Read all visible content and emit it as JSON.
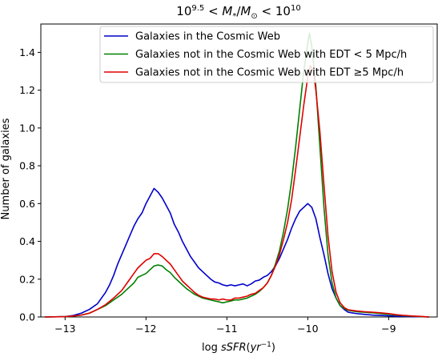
{
  "chart_data": {
    "type": "line",
    "title": "10^9.5 < M*/M⊙ < 10^10",
    "xlabel": "log sSFR(yr⁻¹)",
    "ylabel": "Number of galaxies",
    "xlim": [
      -13.3,
      -8.4
    ],
    "ylim": [
      0,
      1.55
    ],
    "xticks": [
      -13,
      -12,
      -11,
      -10,
      -9
    ],
    "yticks": [
      0.0,
      0.2,
      0.4,
      0.6,
      0.8,
      1.0,
      1.2,
      1.4
    ],
    "xtick_labels": [
      "−13",
      "−12",
      "−11",
      "−10",
      "−9"
    ],
    "ytick_labels": [
      "0.0",
      "0.2",
      "0.4",
      "0.6",
      "0.8",
      "1.0",
      "1.2",
      "1.4"
    ],
    "grid": false,
    "legend_position": "top-right",
    "series": [
      {
        "name": "Galaxies in the Cosmic Web",
        "color": "#0000cc",
        "points": [
          [
            -13.25,
            0.0
          ],
          [
            -13.0,
            0.002
          ],
          [
            -12.9,
            0.008
          ],
          [
            -12.8,
            0.02
          ],
          [
            -12.7,
            0.04
          ],
          [
            -12.6,
            0.07
          ],
          [
            -12.5,
            0.13
          ],
          [
            -12.45,
            0.17
          ],
          [
            -12.4,
            0.22
          ],
          [
            -12.35,
            0.28
          ],
          [
            -12.3,
            0.33
          ],
          [
            -12.25,
            0.38
          ],
          [
            -12.2,
            0.43
          ],
          [
            -12.15,
            0.48
          ],
          [
            -12.1,
            0.52
          ],
          [
            -12.05,
            0.55
          ],
          [
            -12.0,
            0.6
          ],
          [
            -11.95,
            0.64
          ],
          [
            -11.9,
            0.68
          ],
          [
            -11.85,
            0.66
          ],
          [
            -11.8,
            0.63
          ],
          [
            -11.75,
            0.59
          ],
          [
            -11.7,
            0.55
          ],
          [
            -11.65,
            0.49
          ],
          [
            -11.6,
            0.45
          ],
          [
            -11.55,
            0.4
          ],
          [
            -11.5,
            0.36
          ],
          [
            -11.45,
            0.32
          ],
          [
            -11.4,
            0.29
          ],
          [
            -11.35,
            0.26
          ],
          [
            -11.3,
            0.24
          ],
          [
            -11.25,
            0.22
          ],
          [
            -11.2,
            0.2
          ],
          [
            -11.15,
            0.185
          ],
          [
            -11.1,
            0.18
          ],
          [
            -11.05,
            0.17
          ],
          [
            -11.0,
            0.165
          ],
          [
            -10.95,
            0.17
          ],
          [
            -10.9,
            0.165
          ],
          [
            -10.85,
            0.17
          ],
          [
            -10.8,
            0.175
          ],
          [
            -10.75,
            0.165
          ],
          [
            -10.7,
            0.175
          ],
          [
            -10.65,
            0.19
          ],
          [
            -10.6,
            0.195
          ],
          [
            -10.55,
            0.21
          ],
          [
            -10.5,
            0.22
          ],
          [
            -10.45,
            0.24
          ],
          [
            -10.4,
            0.27
          ],
          [
            -10.35,
            0.31
          ],
          [
            -10.3,
            0.36
          ],
          [
            -10.25,
            0.41
          ],
          [
            -10.2,
            0.47
          ],
          [
            -10.15,
            0.52
          ],
          [
            -10.1,
            0.56
          ],
          [
            -10.05,
            0.58
          ],
          [
            -10.0,
            0.6
          ],
          [
            -9.95,
            0.58
          ],
          [
            -9.9,
            0.52
          ],
          [
            -9.85,
            0.42
          ],
          [
            -9.8,
            0.33
          ],
          [
            -9.75,
            0.23
          ],
          [
            -9.7,
            0.15
          ],
          [
            -9.65,
            0.1
          ],
          [
            -9.6,
            0.06
          ],
          [
            -9.55,
            0.04
          ],
          [
            -9.5,
            0.025
          ],
          [
            -9.4,
            0.018
          ],
          [
            -9.3,
            0.014
          ],
          [
            -9.2,
            0.01
          ],
          [
            -9.1,
            0.008
          ],
          [
            -9.0,
            0.006
          ],
          [
            -8.9,
            0.004
          ],
          [
            -8.8,
            0.003
          ],
          [
            -8.7,
            0.002
          ],
          [
            -8.6,
            0.001
          ],
          [
            -8.5,
            0.0
          ]
        ]
      },
      {
        "name": "Galaxies not in the Cosmic Web with EDT < 5 Mpc/h",
        "color": "#008000",
        "points": [
          [
            -13.25,
            0.0
          ],
          [
            -13.0,
            0.002
          ],
          [
            -12.9,
            0.005
          ],
          [
            -12.8,
            0.01
          ],
          [
            -12.7,
            0.02
          ],
          [
            -12.6,
            0.04
          ],
          [
            -12.5,
            0.06
          ],
          [
            -12.4,
            0.09
          ],
          [
            -12.3,
            0.12
          ],
          [
            -12.25,
            0.14
          ],
          [
            -12.2,
            0.16
          ],
          [
            -12.15,
            0.18
          ],
          [
            -12.1,
            0.21
          ],
          [
            -12.05,
            0.22
          ],
          [
            -12.0,
            0.23
          ],
          [
            -11.95,
            0.25
          ],
          [
            -11.9,
            0.27
          ],
          [
            -11.85,
            0.275
          ],
          [
            -11.8,
            0.27
          ],
          [
            -11.75,
            0.25
          ],
          [
            -11.7,
            0.235
          ],
          [
            -11.65,
            0.21
          ],
          [
            -11.6,
            0.19
          ],
          [
            -11.55,
            0.17
          ],
          [
            -11.5,
            0.15
          ],
          [
            -11.45,
            0.135
          ],
          [
            -11.4,
            0.12
          ],
          [
            -11.35,
            0.11
          ],
          [
            -11.3,
            0.1
          ],
          [
            -11.25,
            0.095
          ],
          [
            -11.2,
            0.09
          ],
          [
            -11.15,
            0.085
          ],
          [
            -11.1,
            0.08
          ],
          [
            -11.05,
            0.075
          ],
          [
            -11.0,
            0.08
          ],
          [
            -10.95,
            0.085
          ],
          [
            -10.9,
            0.09
          ],
          [
            -10.85,
            0.09
          ],
          [
            -10.8,
            0.095
          ],
          [
            -10.75,
            0.1
          ],
          [
            -10.7,
            0.11
          ],
          [
            -10.65,
            0.12
          ],
          [
            -10.6,
            0.135
          ],
          [
            -10.55,
            0.155
          ],
          [
            -10.5,
            0.18
          ],
          [
            -10.45,
            0.22
          ],
          [
            -10.4,
            0.28
          ],
          [
            -10.35,
            0.35
          ],
          [
            -10.3,
            0.45
          ],
          [
            -10.25,
            0.57
          ],
          [
            -10.2,
            0.72
          ],
          [
            -10.15,
            0.9
          ],
          [
            -10.1,
            1.1
          ],
          [
            -10.05,
            1.3
          ],
          [
            -10.0,
            1.45
          ],
          [
            -9.98,
            1.5
          ],
          [
            -9.95,
            1.43
          ],
          [
            -9.9,
            1.22
          ],
          [
            -9.85,
            0.9
          ],
          [
            -9.8,
            0.58
          ],
          [
            -9.75,
            0.33
          ],
          [
            -9.7,
            0.18
          ],
          [
            -9.65,
            0.1
          ],
          [
            -9.6,
            0.06
          ],
          [
            -9.55,
            0.045
          ],
          [
            -9.5,
            0.035
          ],
          [
            -9.4,
            0.028
          ],
          [
            -9.3,
            0.025
          ],
          [
            -9.2,
            0.022
          ],
          [
            -9.1,
            0.018
          ],
          [
            -9.0,
            0.014
          ],
          [
            -8.9,
            0.01
          ],
          [
            -8.8,
            0.006
          ],
          [
            -8.7,
            0.004
          ],
          [
            -8.6,
            0.002
          ],
          [
            -8.5,
            0.0
          ]
        ]
      },
      {
        "name": "Galaxies not in the Cosmic Web with EDT ≥5 Mpc/h",
        "color": "#e00000",
        "points": [
          [
            -13.25,
            0.0
          ],
          [
            -13.0,
            0.002
          ],
          [
            -12.9,
            0.005
          ],
          [
            -12.8,
            0.01
          ],
          [
            -12.7,
            0.02
          ],
          [
            -12.6,
            0.04
          ],
          [
            -12.5,
            0.065
          ],
          [
            -12.4,
            0.1
          ],
          [
            -12.3,
            0.14
          ],
          [
            -12.25,
            0.17
          ],
          [
            -12.2,
            0.2
          ],
          [
            -12.15,
            0.23
          ],
          [
            -12.1,
            0.26
          ],
          [
            -12.05,
            0.28
          ],
          [
            -12.0,
            0.3
          ],
          [
            -11.95,
            0.31
          ],
          [
            -11.9,
            0.335
          ],
          [
            -11.85,
            0.335
          ],
          [
            -11.8,
            0.32
          ],
          [
            -11.75,
            0.3
          ],
          [
            -11.7,
            0.28
          ],
          [
            -11.65,
            0.25
          ],
          [
            -11.6,
            0.22
          ],
          [
            -11.55,
            0.19
          ],
          [
            -11.5,
            0.17
          ],
          [
            -11.45,
            0.15
          ],
          [
            -11.4,
            0.13
          ],
          [
            -11.35,
            0.115
          ],
          [
            -11.3,
            0.105
          ],
          [
            -11.25,
            0.1
          ],
          [
            -11.2,
            0.095
          ],
          [
            -11.15,
            0.095
          ],
          [
            -11.1,
            0.09
          ],
          [
            -11.05,
            0.095
          ],
          [
            -11.0,
            0.09
          ],
          [
            -10.95,
            0.09
          ],
          [
            -10.9,
            0.1
          ],
          [
            -10.85,
            0.1
          ],
          [
            -10.8,
            0.105
          ],
          [
            -10.75,
            0.11
          ],
          [
            -10.7,
            0.12
          ],
          [
            -10.65,
            0.125
          ],
          [
            -10.6,
            0.14
          ],
          [
            -10.55,
            0.155
          ],
          [
            -10.5,
            0.18
          ],
          [
            -10.45,
            0.22
          ],
          [
            -10.4,
            0.27
          ],
          [
            -10.35,
            0.33
          ],
          [
            -10.3,
            0.41
          ],
          [
            -10.25,
            0.5
          ],
          [
            -10.2,
            0.62
          ],
          [
            -10.15,
            0.78
          ],
          [
            -10.1,
            0.95
          ],
          [
            -10.05,
            1.12
          ],
          [
            -10.0,
            1.27
          ],
          [
            -9.97,
            1.33
          ],
          [
            -9.93,
            1.3
          ],
          [
            -9.9,
            1.2
          ],
          [
            -9.85,
            0.98
          ],
          [
            -9.8,
            0.7
          ],
          [
            -9.75,
            0.43
          ],
          [
            -9.7,
            0.24
          ],
          [
            -9.65,
            0.13
          ],
          [
            -9.6,
            0.075
          ],
          [
            -9.55,
            0.05
          ],
          [
            -9.5,
            0.038
          ],
          [
            -9.4,
            0.032
          ],
          [
            -9.3,
            0.028
          ],
          [
            -9.2,
            0.025
          ],
          [
            -9.1,
            0.022
          ],
          [
            -9.0,
            0.018
          ],
          [
            -8.9,
            0.012
          ],
          [
            -8.8,
            0.008
          ],
          [
            -8.7,
            0.005
          ],
          [
            -8.6,
            0.003
          ],
          [
            -8.5,
            0.0
          ]
        ]
      }
    ]
  }
}
